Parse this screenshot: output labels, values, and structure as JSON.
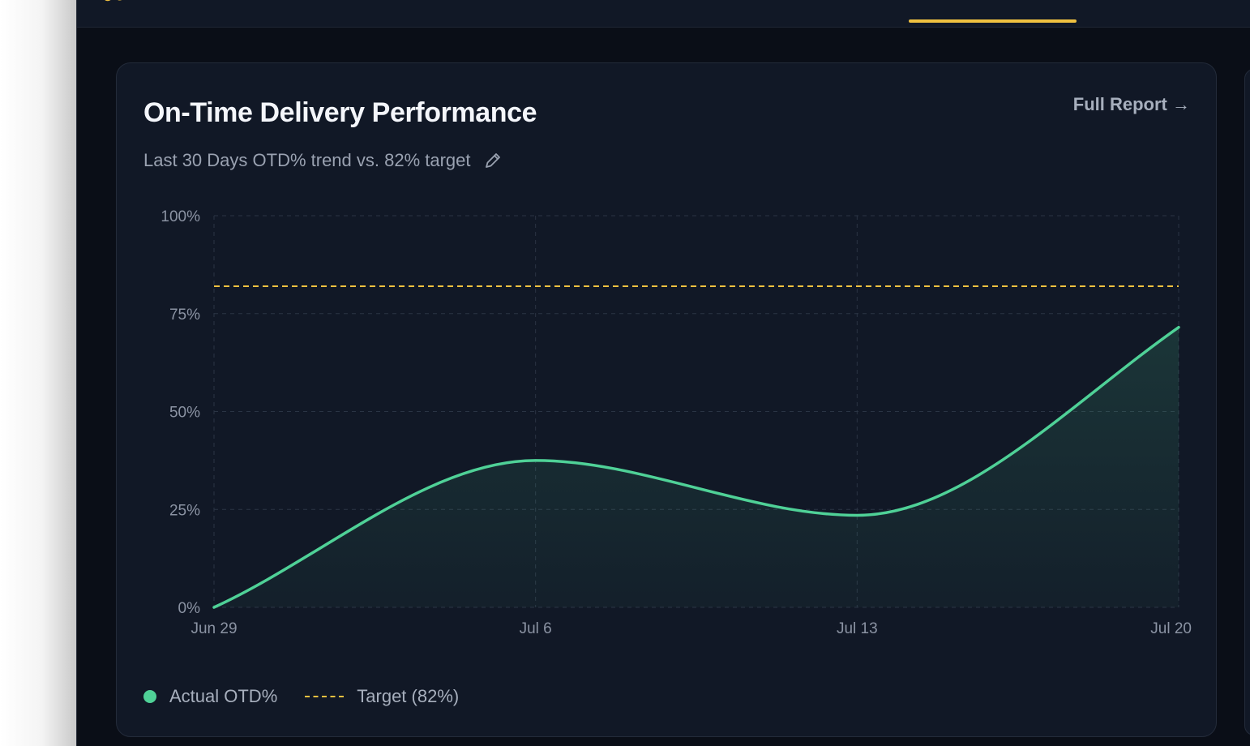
{
  "colors": {
    "background": "#0a0e17",
    "card": "#111826",
    "accent": "#f0c140",
    "series": "#4fd197",
    "grid": "#2a3444",
    "text_muted": "#9aa2b1"
  },
  "header": {
    "logo_icon": "logo-icon"
  },
  "card": {
    "title": "On-Time Delivery Performance",
    "subtitle": "Last 30 Days OTD% trend vs. 82% target",
    "edit_icon": "pencil-icon",
    "full_report_label": "Full Report →"
  },
  "legend": {
    "actual": "Actual OTD%",
    "target": "Target (82%)"
  },
  "chart_data": {
    "type": "area",
    "x": [
      "Jun 29",
      "Jul 6",
      "Jul 13",
      "Jul 20"
    ],
    "x_tick_labels": [
      "Jun 29",
      "Jul 6",
      "Jul 13",
      "Jul 20"
    ],
    "y_tick_labels": [
      "0%",
      "25%",
      "50%",
      "75%",
      "100%"
    ],
    "ylim": [
      0,
      100
    ],
    "series": [
      {
        "name": "Actual OTD%",
        "values": [
          0,
          37.5,
          23.5,
          71.5
        ]
      }
    ],
    "target": {
      "name": "Target (82%)",
      "value": 82
    },
    "grid": true,
    "legend_position": "bottom-left"
  }
}
